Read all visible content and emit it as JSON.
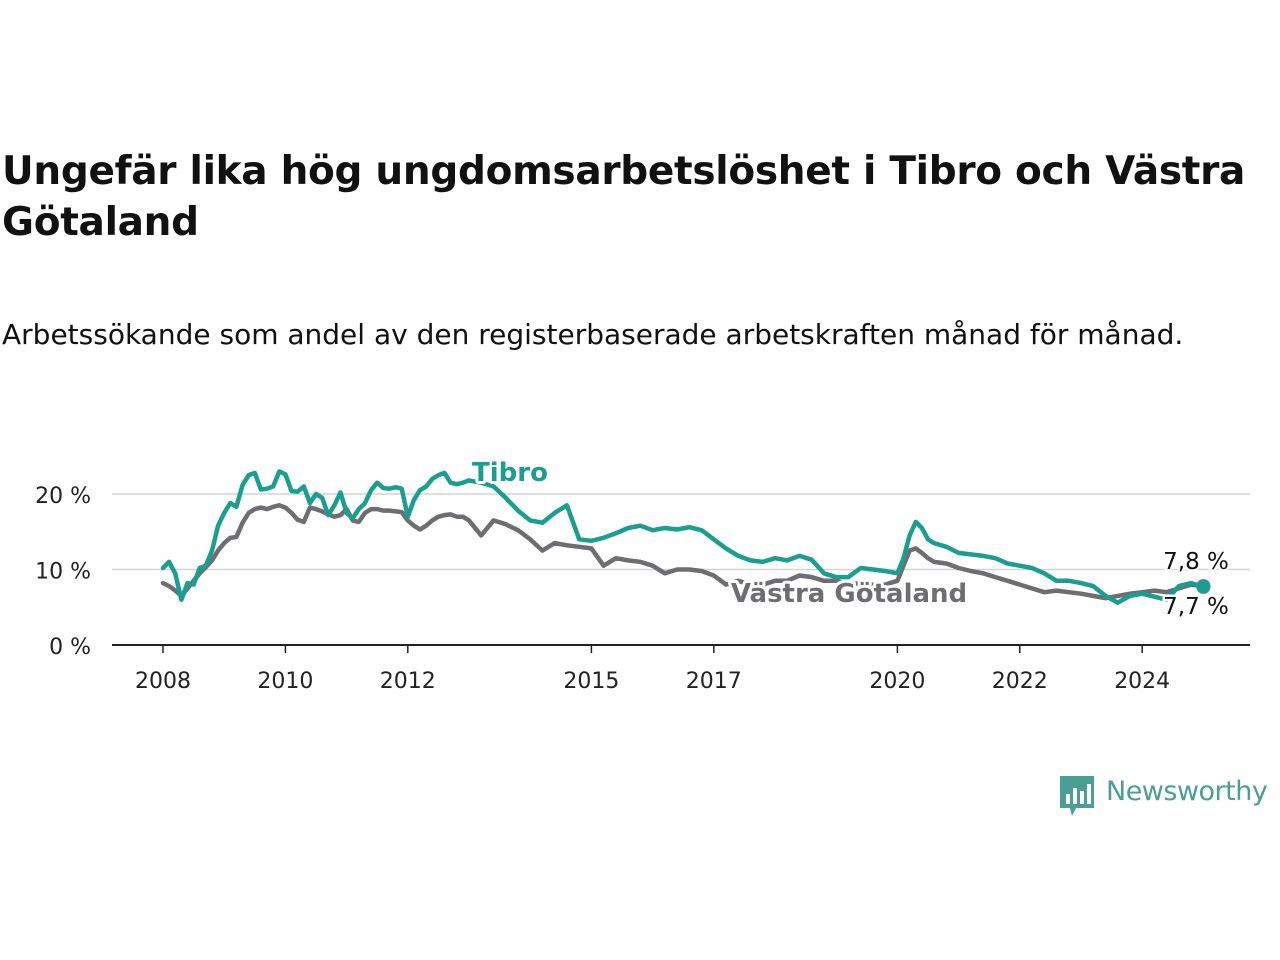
{
  "title": "Ungefär lika hög ungdomsarbetslöshet i Tibro och Västra Götaland",
  "subtitle": "Arbetssökande som andel av den registerbaserade arbetskraften månad för månad.",
  "brand": {
    "name": "Newsworthy",
    "icon": "newsworthy-logo-icon",
    "color": "#4a9e94"
  },
  "chart_data": {
    "type": "line",
    "y_ticks": [
      "0 %",
      "10 %",
      "20 %"
    ],
    "y_tick_values": [
      0,
      10,
      20
    ],
    "ylim": [
      0,
      20
    ],
    "x_ticks": [
      "2008",
      "2010",
      "2012",
      "2015",
      "2017",
      "2020",
      "2022",
      "2024"
    ],
    "x_tick_values": [
      2008,
      2010,
      2012,
      2015,
      2017,
      2020,
      2022,
      2024
    ],
    "grid": "horizontal",
    "series": [
      {
        "name": "Tibro",
        "color": "#1a9e8f",
        "end_label": "7,7 %",
        "x": [
          2008.0,
          2008.1,
          2008.2,
          2008.3,
          2008.4,
          2008.5,
          2008.6,
          2008.7,
          2008.8,
          2008.9,
          2009.0,
          2009.1,
          2009.2,
          2009.3,
          2009.4,
          2009.5,
          2009.6,
          2009.7,
          2009.8,
          2009.9,
          2010.0,
          2010.1,
          2010.2,
          2010.3,
          2010.4,
          2010.5,
          2010.6,
          2010.7,
          2010.8,
          2010.9,
          2011.0,
          2011.1,
          2011.2,
          2011.3,
          2011.4,
          2011.5,
          2011.6,
          2011.7,
          2011.8,
          2011.9,
          2012.0,
          2012.1,
          2012.2,
          2012.3,
          2012.4,
          2012.5,
          2012.6,
          2012.7,
          2012.8,
          2012.9,
          2013.0,
          2013.2,
          2013.4,
          2013.6,
          2013.8,
          2014.0,
          2014.2,
          2014.4,
          2014.6,
          2014.8,
          2015.0,
          2015.2,
          2015.4,
          2015.6,
          2015.8,
          2016.0,
          2016.2,
          2016.4,
          2016.6,
          2016.8,
          2017.0,
          2017.2,
          2017.4,
          2017.6,
          2017.8,
          2018.0,
          2018.2,
          2018.4,
          2018.6,
          2018.8,
          2019.0,
          2019.2,
          2019.4,
          2019.6,
          2019.8,
          2020.0,
          2020.1,
          2020.2,
          2020.3,
          2020.4,
          2020.5,
          2020.6,
          2020.8,
          2021.0,
          2021.2,
          2021.4,
          2021.6,
          2021.8,
          2022.0,
          2022.2,
          2022.4,
          2022.6,
          2022.8,
          2023.0,
          2023.2,
          2023.4,
          2023.6,
          2023.8,
          2024.0,
          2024.2,
          2024.4,
          2024.6,
          2024.8,
          2025.0
        ],
        "values": [
          10.2,
          11.0,
          9.5,
          6.0,
          8.2,
          8.0,
          10.2,
          10.5,
          12.5,
          15.8,
          17.5,
          18.8,
          18.3,
          21.2,
          22.5,
          22.8,
          20.6,
          20.7,
          21.0,
          23.0,
          22.6,
          20.4,
          20.3,
          21.0,
          18.8,
          20.0,
          19.5,
          17.2,
          18.5,
          20.2,
          17.5,
          16.8,
          18.0,
          18.8,
          20.5,
          21.5,
          20.8,
          20.7,
          20.9,
          20.7,
          17.0,
          19.2,
          20.5,
          21.0,
          22.0,
          22.5,
          22.8,
          21.5,
          21.3,
          21.5,
          21.8,
          21.5,
          21.0,
          19.5,
          17.8,
          16.5,
          16.2,
          17.5,
          18.5,
          14.0,
          13.8,
          14.2,
          14.8,
          15.5,
          15.8,
          15.2,
          15.5,
          15.3,
          15.6,
          15.2,
          14.0,
          12.8,
          11.8,
          11.2,
          11.0,
          11.5,
          11.2,
          11.8,
          11.3,
          9.5,
          9.0,
          9.0,
          10.2,
          10.0,
          9.8,
          9.5,
          11.5,
          14.5,
          16.3,
          15.5,
          14.0,
          13.5,
          13.0,
          12.2,
          12.0,
          11.8,
          11.5,
          10.8,
          10.5,
          10.2,
          9.5,
          8.5,
          8.5,
          8.2,
          7.8,
          6.5,
          5.6,
          6.5,
          6.8,
          6.4,
          6.0,
          7.8,
          8.2,
          7.7
        ]
      },
      {
        "name": "Västra Götaland",
        "color": "#6e6d72",
        "end_label": "7,8 %",
        "x": [
          2008.0,
          2008.1,
          2008.2,
          2008.3,
          2008.4,
          2008.5,
          2008.6,
          2008.7,
          2008.8,
          2008.9,
          2009.0,
          2009.1,
          2009.2,
          2009.3,
          2009.4,
          2009.5,
          2009.6,
          2009.7,
          2009.8,
          2009.9,
          2010.0,
          2010.1,
          2010.2,
          2010.3,
          2010.4,
          2010.5,
          2010.6,
          2010.7,
          2010.8,
          2010.9,
          2011.0,
          2011.1,
          2011.2,
          2011.3,
          2011.4,
          2011.5,
          2011.6,
          2011.7,
          2011.8,
          2011.9,
          2012.0,
          2012.1,
          2012.2,
          2012.3,
          2012.4,
          2012.5,
          2012.6,
          2012.7,
          2012.8,
          2012.9,
          2013.0,
          2013.2,
          2013.4,
          2013.6,
          2013.8,
          2014.0,
          2014.2,
          2014.4,
          2014.6,
          2014.8,
          2015.0,
          2015.2,
          2015.4,
          2015.6,
          2015.8,
          2016.0,
          2016.2,
          2016.4,
          2016.6,
          2016.8,
          2017.0,
          2017.2,
          2017.4,
          2017.6,
          2017.8,
          2018.0,
          2018.2,
          2018.4,
          2018.6,
          2018.8,
          2019.0,
          2019.2,
          2019.4,
          2019.6,
          2019.8,
          2020.0,
          2020.1,
          2020.2,
          2020.3,
          2020.4,
          2020.5,
          2020.6,
          2020.8,
          2021.0,
          2021.2,
          2021.4,
          2021.6,
          2021.8,
          2022.0,
          2022.2,
          2022.4,
          2022.6,
          2022.8,
          2023.0,
          2023.2,
          2023.4,
          2023.6,
          2023.8,
          2024.0,
          2024.2,
          2024.4,
          2024.6,
          2024.8,
          2025.0
        ],
        "values": [
          8.2,
          7.8,
          7.2,
          6.5,
          7.5,
          8.5,
          9.5,
          10.3,
          11.2,
          12.5,
          13.5,
          14.2,
          14.3,
          16.2,
          17.5,
          18.0,
          18.2,
          18.0,
          18.3,
          18.5,
          18.2,
          17.5,
          16.6,
          16.3,
          18.2,
          18.0,
          17.7,
          17.3,
          17.0,
          17.2,
          18.0,
          16.5,
          16.3,
          17.5,
          18.0,
          18.0,
          17.8,
          17.8,
          17.7,
          17.6,
          16.5,
          15.8,
          15.3,
          15.8,
          16.5,
          17.0,
          17.2,
          17.3,
          17.0,
          17.0,
          16.5,
          14.5,
          16.5,
          16.0,
          15.2,
          14.0,
          12.5,
          13.5,
          13.2,
          13.0,
          12.8,
          10.5,
          11.5,
          11.2,
          11.0,
          10.5,
          9.5,
          10.0,
          10.0,
          9.8,
          9.2,
          8.0,
          8.5,
          8.0,
          8.0,
          8.5,
          8.5,
          9.2,
          9.0,
          8.5,
          8.5,
          8.0,
          8.2,
          8.0,
          8.0,
          8.5,
          10.5,
          12.5,
          12.8,
          12.2,
          11.5,
          11.0,
          10.8,
          10.2,
          9.8,
          9.5,
          9.0,
          8.5,
          8.0,
          7.5,
          7.0,
          7.2,
          7.0,
          6.8,
          6.5,
          6.2,
          6.5,
          6.8,
          7.0,
          7.2,
          7.0,
          7.5,
          8.0,
          7.8
        ]
      }
    ],
    "annotations": [
      {
        "text": "Tibro",
        "series": "Tibro"
      },
      {
        "text": "Västra Götaland",
        "series": "Västra Götaland"
      }
    ]
  }
}
